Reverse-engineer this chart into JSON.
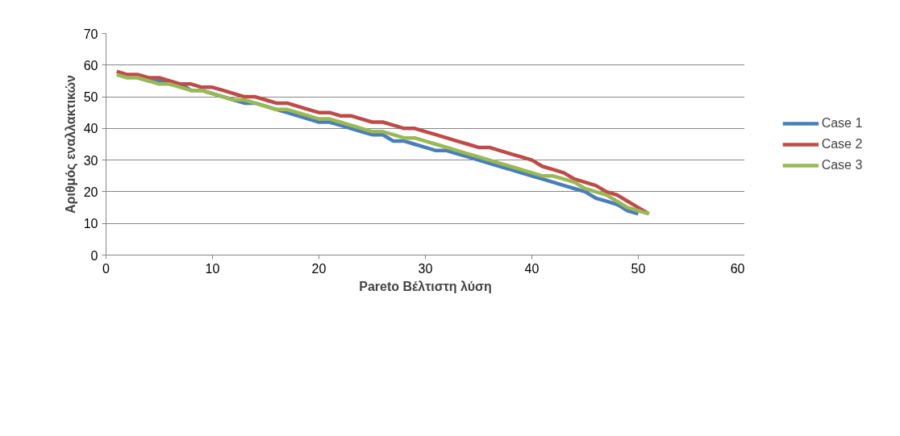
{
  "chart_data": {
    "type": "line",
    "xlabel": "Pareto Βέλτιστη λύση",
    "ylabel": "Αριθμός εναλλακτικών",
    "xlim": [
      0,
      60
    ],
    "xticks": [
      0,
      10,
      20,
      30,
      40,
      50,
      60
    ],
    "ylim": [
      0,
      70
    ],
    "yticks": [
      0,
      10,
      20,
      30,
      40,
      50,
      60,
      70
    ],
    "grid": "y",
    "legend": "right",
    "marker": "none",
    "line_style": "solid",
    "series": [
      {
        "name": "Case 1",
        "color": "#4a7ebb",
        "x": [
          3,
          4,
          5,
          6,
          7,
          8,
          9,
          10,
          11,
          12,
          13,
          14,
          15,
          16,
          17,
          18,
          19,
          20,
          21,
          22,
          23,
          24,
          25,
          26,
          27,
          28,
          29,
          30,
          31,
          32,
          33,
          34,
          35,
          36,
          37,
          38,
          39,
          40,
          41,
          42,
          43,
          44,
          45,
          46,
          47,
          48,
          49,
          50
        ],
        "values": [
          56,
          55,
          55,
          54,
          54,
          52,
          52,
          51,
          50,
          49,
          48,
          48,
          47,
          46,
          45,
          44,
          43,
          42,
          42,
          41,
          40,
          39,
          38,
          38,
          36,
          36,
          35,
          34,
          33,
          33,
          32,
          31,
          30,
          29,
          28,
          27,
          26,
          25,
          24,
          23,
          22,
          21,
          20,
          18,
          17,
          16,
          14,
          13
        ]
      },
      {
        "name": "Case 2",
        "color": "#be4b48",
        "x": [
          1,
          2,
          3,
          4,
          5,
          6,
          7,
          8,
          9,
          10,
          11,
          12,
          13,
          14,
          15,
          16,
          17,
          18,
          19,
          20,
          21,
          22,
          23,
          24,
          25,
          26,
          27,
          28,
          29,
          30,
          31,
          32,
          33,
          34,
          35,
          36,
          37,
          38,
          39,
          40,
          41,
          42,
          43,
          44,
          45,
          46,
          47,
          48,
          49,
          50,
          51
        ],
        "values": [
          58,
          57,
          57,
          56,
          56,
          55,
          54,
          54,
          53,
          53,
          52,
          51,
          50,
          50,
          49,
          48,
          48,
          47,
          46,
          45,
          45,
          44,
          44,
          43,
          42,
          42,
          41,
          40,
          40,
          39,
          38,
          37,
          36,
          35,
          34,
          34,
          33,
          32,
          31,
          30,
          28,
          27,
          26,
          24,
          23,
          22,
          20,
          19,
          17,
          15,
          13
        ]
      },
      {
        "name": "Case 3",
        "color": "#98b954",
        "x": [
          1,
          2,
          3,
          4,
          5,
          6,
          7,
          8,
          9,
          10,
          11,
          12,
          13,
          14,
          15,
          16,
          17,
          18,
          19,
          20,
          21,
          22,
          23,
          24,
          25,
          26,
          27,
          28,
          29,
          30,
          31,
          32,
          33,
          34,
          35,
          36,
          37,
          38,
          39,
          40,
          41,
          42,
          43,
          44,
          45,
          46,
          47,
          48,
          49,
          50,
          51
        ],
        "values": [
          57,
          56,
          56,
          55,
          54,
          54,
          53,
          52,
          52,
          51,
          50,
          49,
          49,
          48,
          47,
          46,
          46,
          45,
          44,
          43,
          43,
          42,
          41,
          40,
          39,
          39,
          38,
          37,
          37,
          36,
          35,
          34,
          33,
          32,
          31,
          30,
          29,
          28,
          27,
          26,
          25,
          25,
          24,
          23,
          21,
          20,
          19,
          17,
          15,
          14,
          13
        ]
      }
    ]
  }
}
